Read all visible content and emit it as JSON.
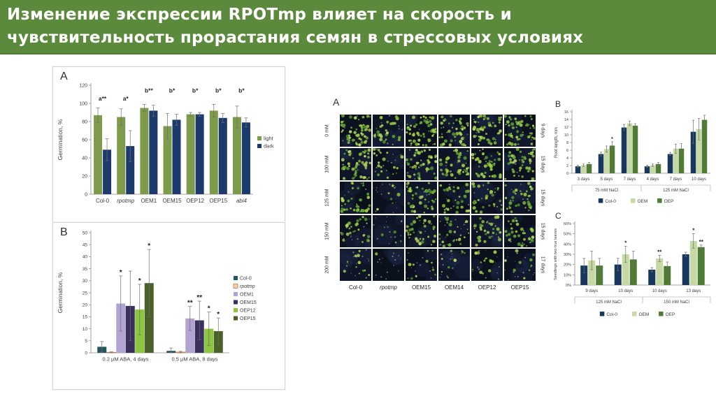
{
  "slide": {
    "title_line1": "Изменение экспрессии RPOTmp влияет на скорость и",
    "title_line2": "чувствительность прорастания семян в стрессовых условиях"
  },
  "theme": {
    "header_bg": "#5c8a3d",
    "header_text": "#ffffff",
    "axis_color": "#8a8a8a",
    "text_color": "#3c3c3c",
    "photo_bg": [
      "#0c1120",
      "#0e1526",
      "#0b101d"
    ],
    "photo_blob": "#223052",
    "dot_palette": [
      "#86b93c",
      "#9ccb4f",
      "#6aa832",
      "#b7d75e",
      "#55942c",
      "#a3c93e"
    ],
    "pale_dot": "#b9c2b2"
  },
  "photo_panel": {
    "panel_letter": "A",
    "row_labels": [
      "0 mM",
      "100 mM",
      "125 mM",
      "150 mM",
      "200 mM"
    ],
    "day_labels": [
      "9 days",
      "15 days",
      "15 days",
      "15 days",
      "17 days"
    ],
    "col_labels": [
      "Col-0",
      "rpotmp",
      "OEM15",
      "OEM14",
      "OEP12",
      "OEP15"
    ],
    "col_italic": [
      false,
      true,
      false,
      false,
      false,
      false
    ],
    "densities": [
      [
        0.95,
        0.4,
        0.85,
        0.75,
        0.8,
        0.85
      ],
      [
        0.9,
        0.3,
        0.75,
        0.7,
        0.65,
        0.7
      ],
      [
        0.55,
        0.12,
        0.7,
        0.5,
        0.5,
        0.55
      ],
      [
        0.45,
        0.06,
        0.55,
        0.45,
        0.55,
        0.5
      ],
      [
        0.18,
        0.04,
        0.18,
        0.12,
        0.22,
        0.15
      ]
    ]
  },
  "chart_data": [
    {
      "id": "germA",
      "panel_letter": "A",
      "type": "bar",
      "title": "",
      "ylabel": "Germination, %",
      "ylim": [
        0,
        120
      ],
      "ystep": 20,
      "ysuffix": "",
      "categories": [
        "Col-0",
        "rpotmp",
        "OEM1",
        "OEM15",
        "OEP12",
        "OEP15",
        "abi4"
      ],
      "italic_flags": [
        false,
        true,
        false,
        false,
        false,
        false,
        true
      ],
      "series": [
        {
          "name": "light",
          "color": "#7d9b4a",
          "values": [
            87,
            85,
            95,
            75,
            88,
            92,
            85
          ],
          "errors": [
            8,
            9,
            4,
            14,
            2,
            7,
            12
          ]
        },
        {
          "name": "dark",
          "color": "#1d3a6d",
          "values": [
            49,
            53,
            92,
            82,
            88,
            84,
            79
          ],
          "errors": [
            12,
            17,
            6,
            6,
            2,
            5,
            5
          ]
        }
      ],
      "annotations": [
        {
          "text": "a**",
          "val": 103
        },
        {
          "text": "a*",
          "val": 103
        },
        {
          "text": "b**",
          "val": 112
        },
        {
          "text": "b*",
          "val": 112
        },
        {
          "text": "b*",
          "val": 112
        },
        {
          "text": "b*",
          "val": 112
        },
        {
          "text": "b*",
          "val": 112
        }
      ],
      "legend": {
        "position": "right"
      }
    },
    {
      "id": "germB",
      "panel_letter": "B",
      "type": "bar",
      "title": "",
      "ylabel": "Germination, %",
      "ylim": [
        0,
        50
      ],
      "ystep": 5,
      "ysuffix": "",
      "categories": [
        "0.2 μM ABA, 4 days",
        "0.5 μM ABA, 8 days"
      ],
      "series": [
        {
          "name": "Col-0",
          "color": "#23585a",
          "values": [
            2.5,
            0.8
          ],
          "errors": [
            2.2,
            1.2
          ],
          "sig": [
            "",
            ""
          ]
        },
        {
          "name": "rpotmp",
          "color": "#f3cdaf",
          "stroke": "#c87b45",
          "italic": true,
          "values": [
            0.2,
            0.3
          ],
          "errors": [
            0.2,
            0.3
          ],
          "sig": [
            "",
            ""
          ]
        },
        {
          "name": "OEM1",
          "color": "#b1a4d2",
          "values": [
            20.5,
            14.3
          ],
          "errors": [
            11.5,
            5.0
          ],
          "sig": [
            "*",
            "**"
          ]
        },
        {
          "name": "OEM15",
          "color": "#39305e",
          "values": [
            19.5,
            13.5
          ],
          "errors": [
            14.5,
            8.0
          ],
          "sig": [
            "",
            "**"
          ]
        },
        {
          "name": "OEP12",
          "color": "#8cc63e",
          "values": [
            18,
            10
          ],
          "errors": [
            10.5,
            7.0
          ],
          "sig": [
            "*",
            "*"
          ]
        },
        {
          "name": "OEP15",
          "color": "#4c6128",
          "values": [
            29,
            9
          ],
          "errors": [
            14.0,
            5.5
          ],
          "sig": [
            "*",
            "*"
          ]
        }
      ],
      "legend": {
        "position": "right"
      }
    },
    {
      "id": "rootB",
      "panel_letter": "B",
      "type": "bar",
      "title": "",
      "ylabel": "Root length, mm",
      "ylim": [
        0,
        16
      ],
      "ystep": 2,
      "ysuffix": "",
      "categories": [
        "3 days",
        "5 days",
        "7 days",
        "4 days",
        "7 days",
        "10 days"
      ],
      "supergroups": [
        {
          "label": "75 mM NaCl",
          "from": 0,
          "to": 2
        },
        {
          "label": "125 mM NaCl",
          "from": 3,
          "to": 5
        }
      ],
      "series": [
        {
          "name": "Col-0",
          "color": "#17375d",
          "values": [
            1.8,
            5.0,
            11.9,
            1.8,
            5.0,
            10.8
          ],
          "errors": [
            0.3,
            0.5,
            0.8,
            0.3,
            0.4,
            3.0
          ],
          "sig": [
            "",
            "",
            "",
            "",
            "",
            ""
          ]
        },
        {
          "name": "OEM",
          "color": "#c6d9a5",
          "values": [
            2.1,
            6.3,
            13.0,
            2.1,
            6.4,
            11.5
          ],
          "errors": [
            0.3,
            0.8,
            0.6,
            0.3,
            1.2,
            2.8
          ],
          "sig": [
            "",
            "",
            "",
            "",
            "",
            ""
          ]
        },
        {
          "name": "OEP",
          "color": "#4f7b35",
          "values": [
            2.4,
            7.2,
            12.4,
            2.4,
            6.4,
            13.9
          ],
          "errors": [
            0.4,
            1.0,
            0.5,
            0.4,
            1.3,
            1.2
          ],
          "sig": [
            "",
            "*",
            "",
            "",
            "",
            ""
          ]
        }
      ],
      "legend": {
        "position": "bottom"
      }
    },
    {
      "id": "leavesC",
      "panel_letter": "C",
      "type": "bar",
      "title": "",
      "ylabel": "Seedlings with two true leaves",
      "ylim": [
        0,
        60
      ],
      "ystep": 10,
      "ysuffix": "%",
      "categories": [
        "9 days",
        "10 days",
        "10 days",
        "13 days"
      ],
      "supergroups": [
        {
          "label": "125 mM NaCl",
          "from": 0,
          "to": 1
        },
        {
          "label": "150 mM NaCl",
          "from": 2,
          "to": 3
        }
      ],
      "series": [
        {
          "name": "Col-0",
          "color": "#17375d",
          "values": [
            19,
            20,
            15,
            30
          ],
          "errors": [
            7,
            6,
            2,
            2
          ],
          "sig": [
            "",
            "",
            "",
            ""
          ]
        },
        {
          "name": "OEM",
          "color": "#c6d9a5",
          "values": [
            24,
            30,
            26,
            43
          ],
          "errors": [
            9,
            8,
            3,
            7
          ],
          "sig": [
            "",
            "*",
            "**",
            "*"
          ]
        },
        {
          "name": "OEP",
          "color": "#4f7b35",
          "values": [
            19,
            25,
            18.5,
            37
          ],
          "errors": [
            7,
            8,
            4,
            2
          ],
          "sig": [
            "",
            "",
            "",
            "**"
          ]
        }
      ],
      "legend": {
        "position": "bottom"
      }
    }
  ]
}
